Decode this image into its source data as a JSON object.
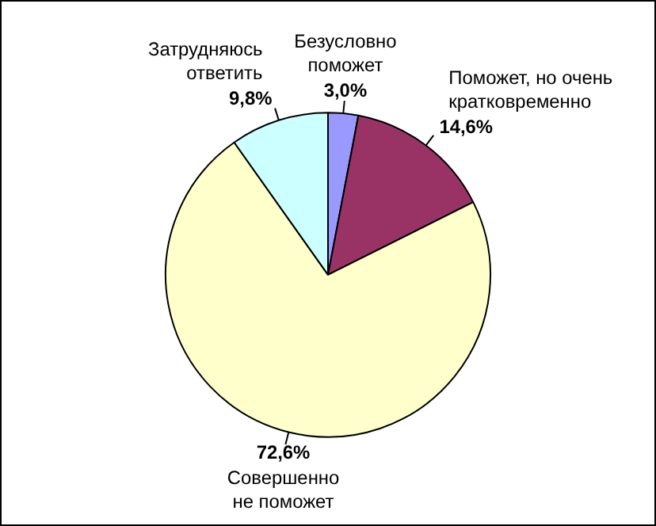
{
  "chart_data": {
    "type": "pie",
    "categories": [
      "Безусловно поможет",
      "Поможет, но очень кратковременно",
      "Совершенно не поможет",
      "Затрудняюсь ответить"
    ],
    "values": [
      3.0,
      14.6,
      72.6,
      9.8
    ],
    "value_labels": [
      "3,0%",
      "14,6%",
      "72,6%",
      "9,8%"
    ],
    "colors": [
      "#9999ff",
      "#993366",
      "#ffffcc",
      "#ccffff"
    ],
    "legend": false
  }
}
